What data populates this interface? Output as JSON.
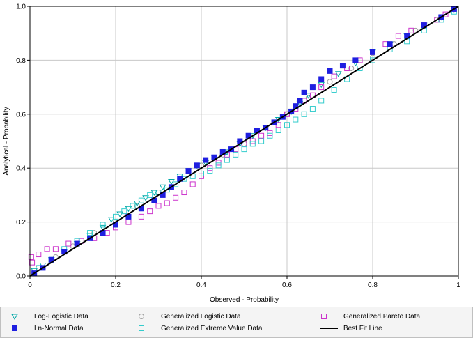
{
  "chart_data": {
    "type": "scatter",
    "xlabel": "Observed - Probability",
    "ylabel": "Analytical - Probability",
    "xlim": [
      0,
      1
    ],
    "ylim": [
      0,
      1
    ],
    "x_ticks": [
      "0",
      "0.2",
      "0.4",
      "0.6",
      "0.8",
      "1"
    ],
    "y_ticks": [
      "0.0",
      "0.2",
      "0.4",
      "0.6",
      "0.8",
      "1.0"
    ],
    "grid": true,
    "legend_position": "bottom",
    "series": [
      {
        "name": "Log-Logistic Data",
        "marker": "triangle-open",
        "color": "#00a8a8",
        "x": [
          0.01,
          0.03,
          0.05,
          0.08,
          0.11,
          0.14,
          0.17,
          0.19,
          0.21,
          0.23,
          0.25,
          0.27,
          0.29,
          0.31,
          0.33,
          0.35,
          0.37,
          0.39,
          0.41,
          0.43,
          0.46,
          0.49,
          0.52,
          0.55,
          0.58,
          0.61,
          0.63,
          0.65,
          0.68,
          0.72,
          0.76,
          0.8,
          0.84,
          0.88,
          0.92,
          0.96,
          0.99
        ],
        "y": [
          0.02,
          0.04,
          0.06,
          0.09,
          0.12,
          0.15,
          0.18,
          0.21,
          0.23,
          0.25,
          0.27,
          0.29,
          0.31,
          0.33,
          0.35,
          0.37,
          0.39,
          0.41,
          0.42,
          0.44,
          0.46,
          0.49,
          0.52,
          0.55,
          0.58,
          0.61,
          0.64,
          0.67,
          0.71,
          0.75,
          0.79,
          0.83,
          0.86,
          0.89,
          0.93,
          0.96,
          0.99
        ]
      },
      {
        "name": "Generalized Logistic Data",
        "marker": "circle-open",
        "color": "#a0a0a0",
        "x": [
          0.02,
          0.06,
          0.1,
          0.15,
          0.2,
          0.25,
          0.3,
          0.35,
          0.4,
          0.45,
          0.5,
          0.55,
          0.6,
          0.65,
          0.7,
          0.75,
          0.8,
          0.85,
          0.9,
          0.95,
          0.99
        ],
        "y": [
          0.03,
          0.07,
          0.11,
          0.16,
          0.2,
          0.26,
          0.31,
          0.36,
          0.41,
          0.45,
          0.49,
          0.55,
          0.6,
          0.66,
          0.72,
          0.77,
          0.81,
          0.86,
          0.91,
          0.95,
          0.99
        ]
      },
      {
        "name": "Generalized Pareto Data",
        "marker": "square-open",
        "color": "#cc33cc",
        "x": [
          0.003,
          0.005,
          0.02,
          0.04,
          0.06,
          0.09,
          0.12,
          0.15,
          0.18,
          0.2,
          0.23,
          0.26,
          0.28,
          0.3,
          0.32,
          0.34,
          0.36,
          0.38,
          0.4,
          0.42,
          0.44,
          0.46,
          0.48,
          0.5,
          0.52,
          0.54,
          0.56,
          0.58,
          0.6,
          0.62,
          0.64,
          0.66,
          0.68,
          0.71,
          0.74,
          0.77,
          0.8,
          0.83,
          0.86,
          0.89,
          0.92,
          0.95,
          0.97,
          0.99
        ],
        "y": [
          0.07,
          0.05,
          0.08,
          0.1,
          0.1,
          0.12,
          0.13,
          0.14,
          0.16,
          0.18,
          0.2,
          0.22,
          0.24,
          0.26,
          0.27,
          0.29,
          0.31,
          0.34,
          0.37,
          0.4,
          0.42,
          0.45,
          0.47,
          0.49,
          0.5,
          0.52,
          0.53,
          0.56,
          0.6,
          0.62,
          0.65,
          0.67,
          0.7,
          0.74,
          0.77,
          0.8,
          0.83,
          0.86,
          0.89,
          0.91,
          0.93,
          0.95,
          0.97,
          0.99
        ]
      },
      {
        "name": "Ln-Normal Data",
        "marker": "square-filled",
        "color": "#1f1fe0",
        "x": [
          0.01,
          0.03,
          0.05,
          0.08,
          0.11,
          0.14,
          0.17,
          0.2,
          0.23,
          0.26,
          0.29,
          0.31,
          0.33,
          0.35,
          0.37,
          0.39,
          0.41,
          0.43,
          0.45,
          0.47,
          0.49,
          0.51,
          0.53,
          0.55,
          0.57,
          0.59,
          0.61,
          0.62,
          0.63,
          0.64,
          0.66,
          0.68,
          0.7,
          0.73,
          0.76,
          0.8,
          0.84,
          0.88,
          0.92,
          0.96,
          0.99
        ],
        "y": [
          0.01,
          0.03,
          0.06,
          0.09,
          0.12,
          0.14,
          0.16,
          0.19,
          0.22,
          0.25,
          0.28,
          0.3,
          0.33,
          0.36,
          0.39,
          0.41,
          0.43,
          0.44,
          0.46,
          0.47,
          0.5,
          0.52,
          0.54,
          0.55,
          0.57,
          0.59,
          0.61,
          0.63,
          0.65,
          0.68,
          0.7,
          0.73,
          0.76,
          0.78,
          0.8,
          0.83,
          0.86,
          0.89,
          0.93,
          0.96,
          0.99
        ]
      },
      {
        "name": "Generalized Extreme Value Data",
        "marker": "square-open",
        "color": "#33cccc",
        "x": [
          0.02,
          0.05,
          0.08,
          0.11,
          0.14,
          0.17,
          0.2,
          0.22,
          0.24,
          0.26,
          0.28,
          0.3,
          0.32,
          0.34,
          0.36,
          0.38,
          0.4,
          0.42,
          0.44,
          0.46,
          0.48,
          0.5,
          0.52,
          0.54,
          0.56,
          0.58,
          0.6,
          0.62,
          0.64,
          0.66,
          0.68,
          0.71,
          0.74,
          0.77,
          0.8,
          0.84,
          0.88,
          0.92,
          0.96,
          0.99
        ],
        "y": [
          0.03,
          0.06,
          0.1,
          0.13,
          0.16,
          0.19,
          0.22,
          0.24,
          0.26,
          0.28,
          0.3,
          0.31,
          0.32,
          0.34,
          0.36,
          0.37,
          0.38,
          0.39,
          0.41,
          0.43,
          0.45,
          0.47,
          0.49,
          0.5,
          0.52,
          0.54,
          0.56,
          0.58,
          0.6,
          0.62,
          0.65,
          0.69,
          0.73,
          0.77,
          0.8,
          0.84,
          0.87,
          0.91,
          0.95,
          0.98
        ]
      },
      {
        "name": "Best Fit Line",
        "marker": "line",
        "color": "#000000",
        "x": [
          0,
          1
        ],
        "y": [
          0,
          1
        ]
      }
    ]
  },
  "legend": {
    "items": [
      {
        "label": "Log-Logistic Data",
        "marker": "triangle-open",
        "color": "#00a8a8"
      },
      {
        "label": "Generalized Logistic Data",
        "marker": "circle-open",
        "color": "#a0a0a0"
      },
      {
        "label": "Generalized Pareto Data",
        "marker": "square-open",
        "color": "#cc33cc"
      },
      {
        "label": "Ln-Normal Data",
        "marker": "square-filled",
        "color": "#1f1fe0"
      },
      {
        "label": "Generalized Extreme Value Data",
        "marker": "square-open",
        "color": "#33cccc"
      },
      {
        "label": "Best Fit Line",
        "marker": "line",
        "color": "#000000"
      }
    ]
  }
}
